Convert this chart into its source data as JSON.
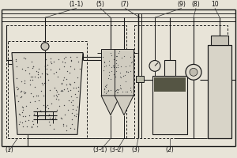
{
  "bg_color": "#e8e4d8",
  "line_color": "#1a1a1a",
  "fig_width": 3.0,
  "fig_height": 2.0,
  "dpi": 100,
  "labels": {
    "1": "(1)",
    "1_1": "(1-1)",
    "2": "(2)",
    "3": "(3)",
    "3_1": "(3-1)",
    "3_2": "(3-2)",
    "5": "(5)",
    "7": "(7)",
    "8": "(8)",
    "9": "(9)",
    "10": "10"
  }
}
